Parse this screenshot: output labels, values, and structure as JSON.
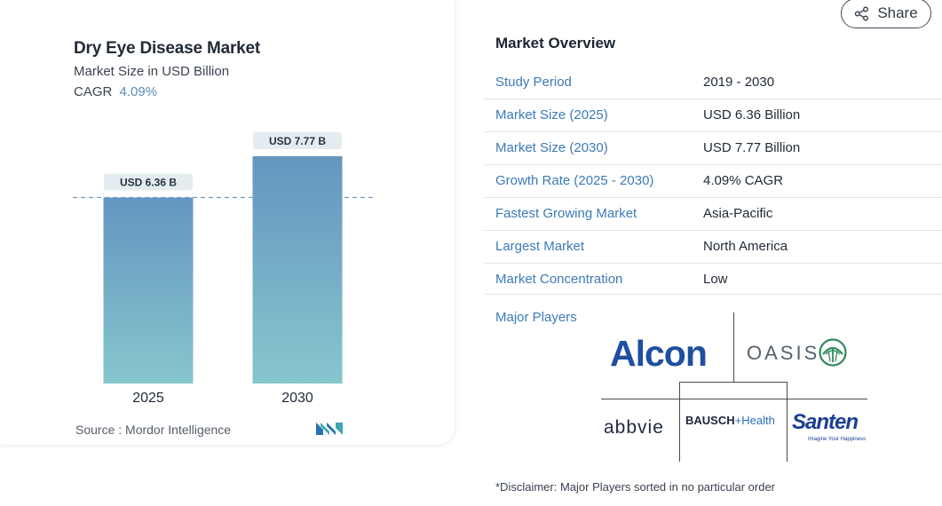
{
  "chart_data": {
    "type": "bar",
    "title": "Dry Eye Disease Market",
    "subtitle": "Market Size in USD Billion",
    "cagr_label": "CAGR",
    "cagr_value": "4.09%",
    "categories": [
      "2025",
      "2030"
    ],
    "values": [
      6.36,
      7.77
    ],
    "data_labels": [
      "USD 6.36 B",
      "USD 7.77 B"
    ],
    "ylim": [
      0,
      7.77
    ],
    "reference_line": 6.36,
    "grid": false,
    "legend": "none",
    "colors": {
      "bar_top": "#6496c0",
      "bar_bottom": "#86c6cd",
      "label_bg": "#e4ecef",
      "ref_line": "#6a98c4"
    }
  },
  "source": "Source :  Mordor Intelligence",
  "share": {
    "label": "Share",
    "icon": "share-icon"
  },
  "overview": {
    "title": "Market Overview",
    "rows": [
      {
        "label": "Study Period",
        "value": "2019 - 2030"
      },
      {
        "label": "Market Size (2025)",
        "value": "USD 6.36 Billion"
      },
      {
        "label": "Market Size (2030)",
        "value": "USD 7.77 Billion"
      },
      {
        "label": "Growth Rate (2025 - 2030)",
        "value": "4.09% CAGR"
      },
      {
        "label": "Fastest Growing Market",
        "value": "Asia-Pacific"
      },
      {
        "label": "Largest Market",
        "value": "North America"
      },
      {
        "label": "Market Concentration",
        "value": "Low"
      }
    ],
    "major_players_label": "Major Players"
  },
  "players": {
    "alcon": "Alcon",
    "oasis": "OASIS",
    "abbvie": "abbvie",
    "bausch_a": "BAUSCH",
    "bausch_b": "+Health",
    "santen": "Santen",
    "santen_tag": "Imagine Your Happiness"
  },
  "disclaimer": "*Disclaimer: Major Players sorted in no particular order"
}
